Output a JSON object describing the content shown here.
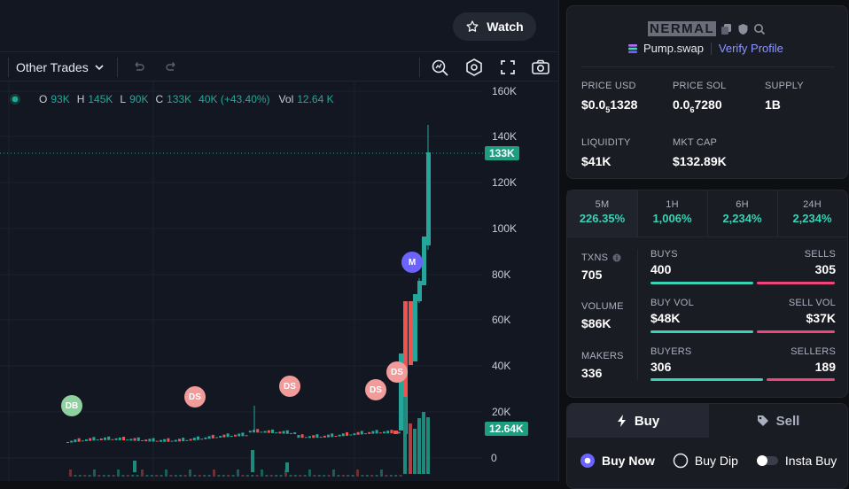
{
  "header": {
    "watch_label": "Watch"
  },
  "toolbar": {
    "trades_label": "Other Trades"
  },
  "ohlc": {
    "open_key": "O",
    "open": "93K",
    "high_key": "H",
    "high": "145K",
    "low_key": "L",
    "low": "90K",
    "close_key": "C",
    "close": "133K",
    "change": "40K (+43.40%)",
    "vol_key": "Vol",
    "vol": "12.64 K"
  },
  "price_axis": {
    "ticks": [
      "160K",
      "140K",
      "120K",
      "100K",
      "80K",
      "60K",
      "40K",
      "20K",
      "0"
    ],
    "last_price": "133K",
    "volume_tag": "12.64K"
  },
  "markers": [
    "DB",
    "DS",
    "DS",
    "DS",
    "DS",
    "M"
  ],
  "token": {
    "name": "NERMAL",
    "platform": "Pump.swap",
    "verify": "Verify Profile",
    "price_usd_label": "PRICE USD",
    "price_usd_main": "$0.0",
    "price_usd_sub": "5",
    "price_usd_rest": "1328",
    "price_sol_label": "PRICE SOL",
    "price_sol_main": "0.0",
    "price_sol_sub": "6",
    "price_sol_rest": "7280",
    "supply_label": "SUPPLY",
    "supply": "1B",
    "liquidity_label": "LIQUIDITY",
    "liquidity": "$41K",
    "mktcap_label": "MKT CAP",
    "mktcap": "$132.89K"
  },
  "timeframes": [
    {
      "label": "5M",
      "pct": "226.35%"
    },
    {
      "label": "1H",
      "pct": "1,006%"
    },
    {
      "label": "6H",
      "pct": "2,234%"
    },
    {
      "label": "24H",
      "pct": "2,234%"
    }
  ],
  "stats": {
    "txns_label": "TXNS",
    "txns": "705",
    "volume_label": "VOLUME",
    "volume": "$86K",
    "makers_label": "MAKERS",
    "makers": "336",
    "buys_label": "BUYS",
    "buys": "400",
    "sells_label": "SELLS",
    "sells": "305",
    "buyvol_label": "BUY VOL",
    "buyvol": "$48K",
    "sellvol_label": "SELL VOL",
    "sellvol": "$37K",
    "buyers_label": "BUYERS",
    "buyers": "306",
    "sellers_label": "SELLERS",
    "sellers": "189",
    "buy_ratio": 0.567,
    "buyvol_ratio": 0.565,
    "buyers_ratio": 0.618
  },
  "trade": {
    "buy_tab": "Buy",
    "sell_tab": "Sell",
    "options": [
      "Buy Now",
      "Buy Dip",
      "Insta Buy"
    ]
  },
  "colors": {
    "up": "#26a69a",
    "down": "#ef5350",
    "accent": "#3ad3b5",
    "pink": "#f0457a",
    "purple": "#6c63ff"
  }
}
